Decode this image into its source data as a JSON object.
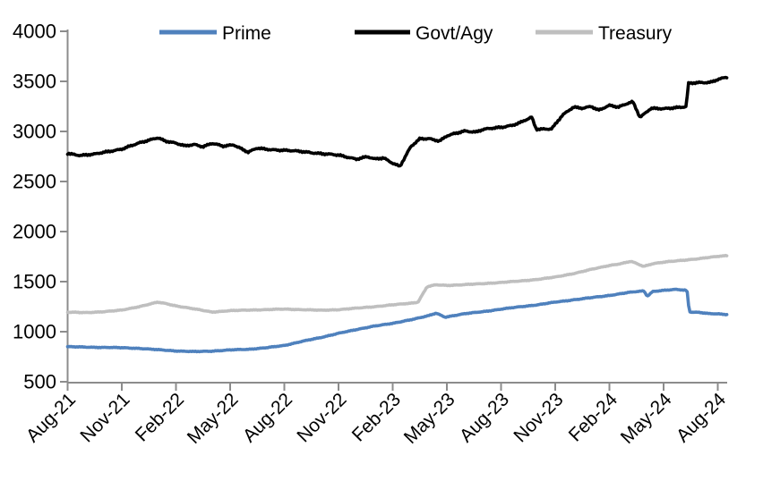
{
  "chart_data": {
    "type": "line",
    "title": "",
    "xlabel": "",
    "ylabel": "",
    "grid": false,
    "legend_position": "top",
    "legend_entries": [
      "Prime",
      "Govt/Agy",
      "Treasury"
    ],
    "ylim": [
      500,
      4000
    ],
    "y_ticks": [
      4000,
      3500,
      3000,
      2500,
      2000,
      1500,
      1000,
      500
    ],
    "x_tick_labels": [
      "Aug-21",
      "Nov-21",
      "Feb-22",
      "May-22",
      "Aug-22",
      "Nov-22",
      "Feb-23",
      "May-23",
      "Aug-23",
      "Nov-23",
      "Feb-24",
      "May-24",
      "Aug-24"
    ],
    "x_tick_months": [
      0,
      3,
      6,
      9,
      12,
      15,
      18,
      21,
      24,
      27,
      30,
      33,
      36
    ],
    "x_unit": "months since Aug-2021",
    "axis_color": "#8c8c8c",
    "label_color": "#000000",
    "series": [
      {
        "name": "Prime",
        "color": "#4f81bd",
        "width": 3.6,
        "noise": 4.5,
        "points": [
          [
            0,
            850
          ],
          [
            1,
            846
          ],
          [
            2,
            843
          ],
          [
            3,
            840
          ],
          [
            4,
            833
          ],
          [
            5,
            820
          ],
          [
            6,
            808
          ],
          [
            7,
            801
          ],
          [
            8,
            806
          ],
          [
            9,
            818
          ],
          [
            10,
            824
          ],
          [
            11,
            840
          ],
          [
            12,
            862
          ],
          [
            13,
            905
          ],
          [
            14,
            940
          ],
          [
            15,
            985
          ],
          [
            16,
            1020
          ],
          [
            17,
            1058
          ],
          [
            18,
            1082
          ],
          [
            19,
            1120
          ],
          [
            20,
            1160
          ],
          [
            20.4,
            1185
          ],
          [
            20.9,
            1145
          ],
          [
            21.6,
            1168
          ],
          [
            22,
            1180
          ],
          [
            23,
            1200
          ],
          [
            24,
            1225
          ],
          [
            25,
            1248
          ],
          [
            26,
            1268
          ],
          [
            27,
            1295
          ],
          [
            28,
            1318
          ],
          [
            29,
            1340
          ],
          [
            30,
            1362
          ],
          [
            31,
            1390
          ],
          [
            31.9,
            1408
          ],
          [
            32.1,
            1355
          ],
          [
            32.4,
            1402
          ],
          [
            33,
            1412
          ],
          [
            33.7,
            1422
          ],
          [
            34.3,
            1413
          ],
          [
            34.42,
            1198
          ],
          [
            35,
            1192
          ],
          [
            35.5,
            1180
          ],
          [
            36,
            1178
          ],
          [
            36.5,
            1172
          ]
        ]
      },
      {
        "name": "Govt/Agy",
        "color": "#000000",
        "width": 3.6,
        "noise": 11,
        "points": [
          [
            0,
            2780
          ],
          [
            0.7,
            2762
          ],
          [
            1.5,
            2772
          ],
          [
            2,
            2790
          ],
          [
            3,
            2825
          ],
          [
            4,
            2885
          ],
          [
            5,
            2940
          ],
          [
            5.4,
            2905
          ],
          [
            6,
            2880
          ],
          [
            6.5,
            2855
          ],
          [
            7,
            2872
          ],
          [
            7.5,
            2848
          ],
          [
            8,
            2880
          ],
          [
            8.6,
            2852
          ],
          [
            9.2,
            2868
          ],
          [
            10,
            2792
          ],
          [
            10.5,
            2832
          ],
          [
            11,
            2822
          ],
          [
            12,
            2812
          ],
          [
            13,
            2798
          ],
          [
            14,
            2780
          ],
          [
            15,
            2762
          ],
          [
            16,
            2725
          ],
          [
            16.6,
            2748
          ],
          [
            17,
            2722
          ],
          [
            17.5,
            2735
          ],
          [
            18,
            2685
          ],
          [
            18.4,
            2652
          ],
          [
            19,
            2845
          ],
          [
            19.5,
            2925
          ],
          [
            20,
            2930
          ],
          [
            20.6,
            2905
          ],
          [
            21,
            2955
          ],
          [
            21.7,
            2990
          ],
          [
            22,
            3005
          ],
          [
            22.6,
            2995
          ],
          [
            23,
            3020
          ],
          [
            24,
            3040
          ],
          [
            24.6,
            3062
          ],
          [
            25,
            3085
          ],
          [
            25.7,
            3140
          ],
          [
            25.95,
            3020
          ],
          [
            26.8,
            3028
          ],
          [
            27.4,
            3162
          ],
          [
            28,
            3240
          ],
          [
            28.5,
            3232
          ],
          [
            29,
            3252
          ],
          [
            29.4,
            3212
          ],
          [
            30,
            3258
          ],
          [
            30.5,
            3242
          ],
          [
            31,
            3282
          ],
          [
            31.3,
            3298
          ],
          [
            31.7,
            3140
          ],
          [
            32.3,
            3228
          ],
          [
            33,
            3228
          ],
          [
            33.6,
            3238
          ],
          [
            34.25,
            3245
          ],
          [
            34.38,
            3478
          ],
          [
            35,
            3488
          ],
          [
            35.6,
            3492
          ],
          [
            36,
            3520
          ],
          [
            36.5,
            3540
          ]
        ]
      },
      {
        "name": "Treasury",
        "color": "#bfbfbf",
        "width": 3.6,
        "noise": 4.5,
        "points": [
          [
            0,
            1195
          ],
          [
            1,
            1190
          ],
          [
            2,
            1200
          ],
          [
            3,
            1215
          ],
          [
            4,
            1252
          ],
          [
            5,
            1295
          ],
          [
            5.5,
            1278
          ],
          [
            6,
            1258
          ],
          [
            7,
            1228
          ],
          [
            8,
            1196
          ],
          [
            9,
            1210
          ],
          [
            10,
            1216
          ],
          [
            11,
            1220
          ],
          [
            12,
            1226
          ],
          [
            13,
            1220
          ],
          [
            14,
            1214
          ],
          [
            15,
            1220
          ],
          [
            16,
            1235
          ],
          [
            17,
            1250
          ],
          [
            18,
            1268
          ],
          [
            19,
            1285
          ],
          [
            19.4,
            1295
          ],
          [
            19.9,
            1448
          ],
          [
            20.4,
            1468
          ],
          [
            21,
            1462
          ],
          [
            22,
            1470
          ],
          [
            23,
            1480
          ],
          [
            24,
            1492
          ],
          [
            25,
            1505
          ],
          [
            26,
            1522
          ],
          [
            27,
            1545
          ],
          [
            28,
            1580
          ],
          [
            29,
            1622
          ],
          [
            30,
            1662
          ],
          [
            30.6,
            1678
          ],
          [
            31.2,
            1702
          ],
          [
            31.9,
            1652
          ],
          [
            32.4,
            1680
          ],
          [
            33,
            1694
          ],
          [
            34,
            1712
          ],
          [
            35,
            1730
          ],
          [
            36,
            1752
          ],
          [
            36.5,
            1760
          ]
        ]
      }
    ]
  }
}
